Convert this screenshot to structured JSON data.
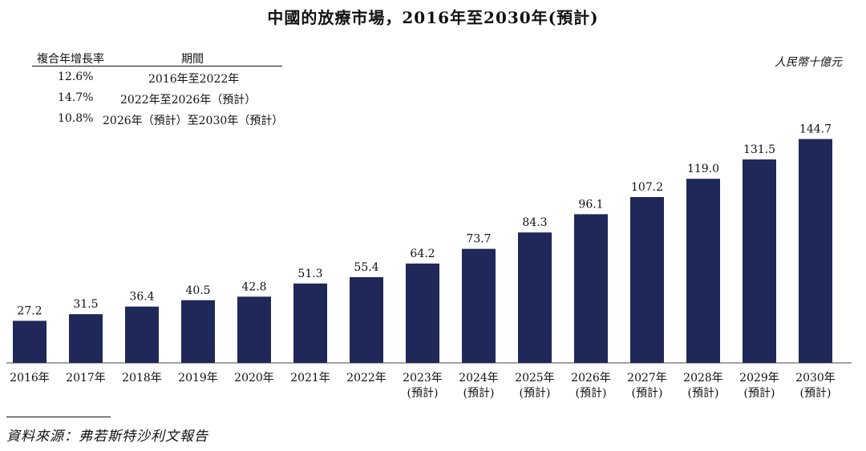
{
  "title": "中國的放療市場，2016年至2030年(預計)",
  "cagr": {
    "header_rate": "複合年增長率",
    "header_period": "期間",
    "rows": [
      {
        "rate": "12.6%",
        "period": "2016年至2022年"
      },
      {
        "rate": "14.7%",
        "period": "2022年至2026年（預計）"
      },
      {
        "rate": "10.8%",
        "period": "2026年（預計）至2030年（預計）"
      }
    ]
  },
  "unit": "人民幣十億元",
  "source": "資料來源：弗若斯特沙利文報告",
  "colors": {
    "bar": "#1f2858"
  },
  "chart_data": {
    "type": "bar",
    "categories": [
      "2016年",
      "2017年",
      "2018年",
      "2019年",
      "2020年",
      "2021年",
      "2022年",
      "2023年\n(預計)",
      "2024年\n(預計)",
      "2025年\n(預計)",
      "2026年\n(預計)",
      "2027年\n(預計)",
      "2028年\n(預計)",
      "2029年\n(預計)",
      "2030年\n(預計)"
    ],
    "values": [
      27.2,
      31.5,
      36.4,
      40.5,
      42.8,
      51.3,
      55.4,
      64.2,
      73.7,
      84.3,
      96.1,
      107.2,
      119.0,
      131.5,
      144.7
    ],
    "value_labels": [
      "27.2",
      "31.5",
      "36.4",
      "40.5",
      "42.8",
      "51.3",
      "55.4",
      "64.2",
      "73.7",
      "84.3",
      "96.1",
      "107.2",
      "119.0",
      "131.5",
      "144.7"
    ],
    "ylim": [
      0,
      160
    ],
    "grid": false,
    "title": "中國的放療市場，2016年至2030年(預計)",
    "xlabel": "",
    "ylabel": "人民幣十億元"
  }
}
